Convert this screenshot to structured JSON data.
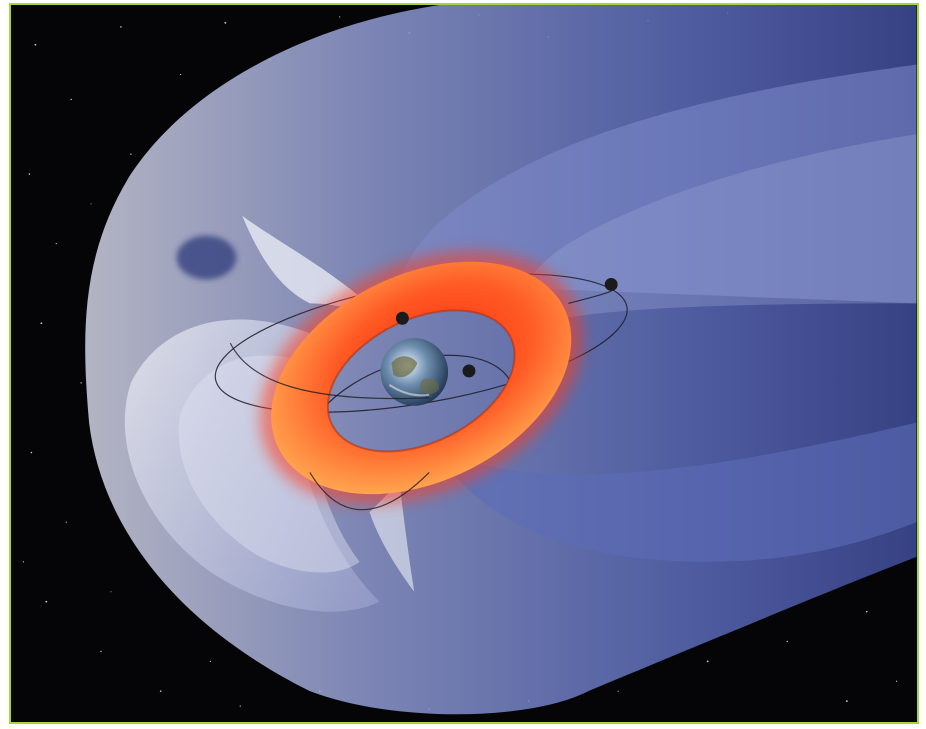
{
  "image": {
    "subject": "earth-magnetosphere-illustration",
    "colors": {
      "frame_border": "#a8d43c",
      "space": "#050508",
      "magnetosphere_light": "#c9cde6",
      "magnetosphere_mid": "#6f7fc4",
      "magnetosphere_deep": "#3e4f9e",
      "ring_outer": "#ff3a1a",
      "ring_inner": "#ffb05a",
      "satellite": "#1b1b1b"
    },
    "satellites_count": 3
  }
}
